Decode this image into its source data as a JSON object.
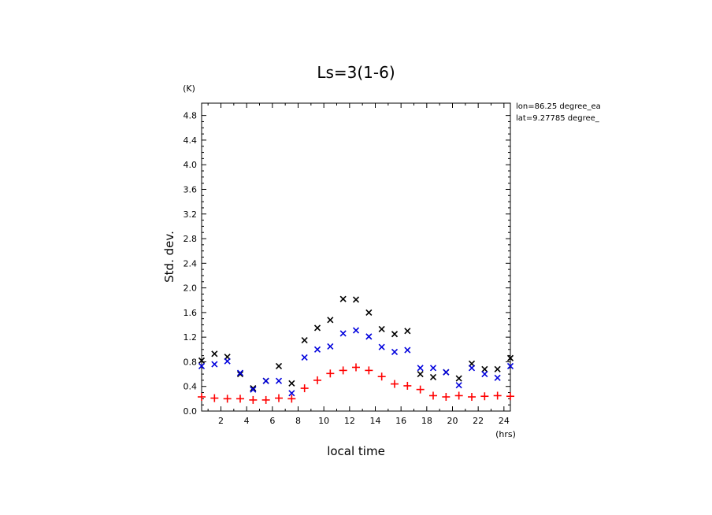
{
  "chart_data": {
    "type": "scatter",
    "title": "Ls=3(1-6)",
    "xlabel": "local time",
    "ylabel": "Std. dev.",
    "x_unit": "(hrs)",
    "y_unit": "(K)",
    "annotation": {
      "lon": "lon=86.25 degree_ea",
      "lat": "lat=9.27785 degree_"
    },
    "xlim": [
      0.5,
      24.5
    ],
    "ylim": [
      0.0,
      5.0
    ],
    "x_ticks": [
      2,
      4,
      6,
      8,
      10,
      12,
      14,
      16,
      18,
      20,
      22,
      24
    ],
    "y_ticks": [
      0.0,
      0.4,
      0.8,
      1.2,
      1.6,
      2.0,
      2.4,
      2.8,
      3.2,
      3.6,
      4.0,
      4.4,
      4.8
    ],
    "grid": false,
    "x": [
      0.5,
      1.5,
      2.5,
      3.5,
      4.5,
      5.5,
      6.5,
      7.5,
      8.5,
      9.5,
      10.5,
      11.5,
      12.5,
      13.5,
      14.5,
      15.5,
      16.5,
      17.5,
      18.5,
      19.5,
      20.5,
      21.5,
      22.5,
      23.5,
      24.5
    ],
    "series": [
      {
        "color": "#000000",
        "marker": "x",
        "values": [
          0.82,
          0.93,
          0.88,
          0.6,
          0.37,
          0.49,
          0.73,
          0.45,
          1.15,
          1.35,
          1.48,
          1.82,
          1.81,
          1.6,
          1.33,
          1.25,
          1.3,
          0.6,
          0.55,
          0.63,
          0.53,
          0.77,
          0.68,
          0.68,
          0.86
        ]
      },
      {
        "color": "#0000dd",
        "marker": "x",
        "values": [
          0.73,
          0.76,
          0.81,
          0.62,
          0.35,
          0.49,
          0.49,
          0.29,
          0.87,
          1.0,
          1.05,
          1.26,
          1.31,
          1.21,
          1.04,
          0.96,
          0.99,
          0.7,
          0.7,
          0.63,
          0.42,
          0.7,
          0.6,
          0.54,
          0.73
        ]
      },
      {
        "color": "#ff0000",
        "marker": "+",
        "values": [
          0.23,
          0.21,
          0.2,
          0.2,
          0.18,
          0.18,
          0.21,
          0.2,
          0.37,
          0.5,
          0.61,
          0.66,
          0.71,
          0.66,
          0.56,
          0.44,
          0.41,
          0.35,
          0.25,
          0.23,
          0.25,
          0.23,
          0.24,
          0.25,
          0.24
        ]
      }
    ]
  }
}
